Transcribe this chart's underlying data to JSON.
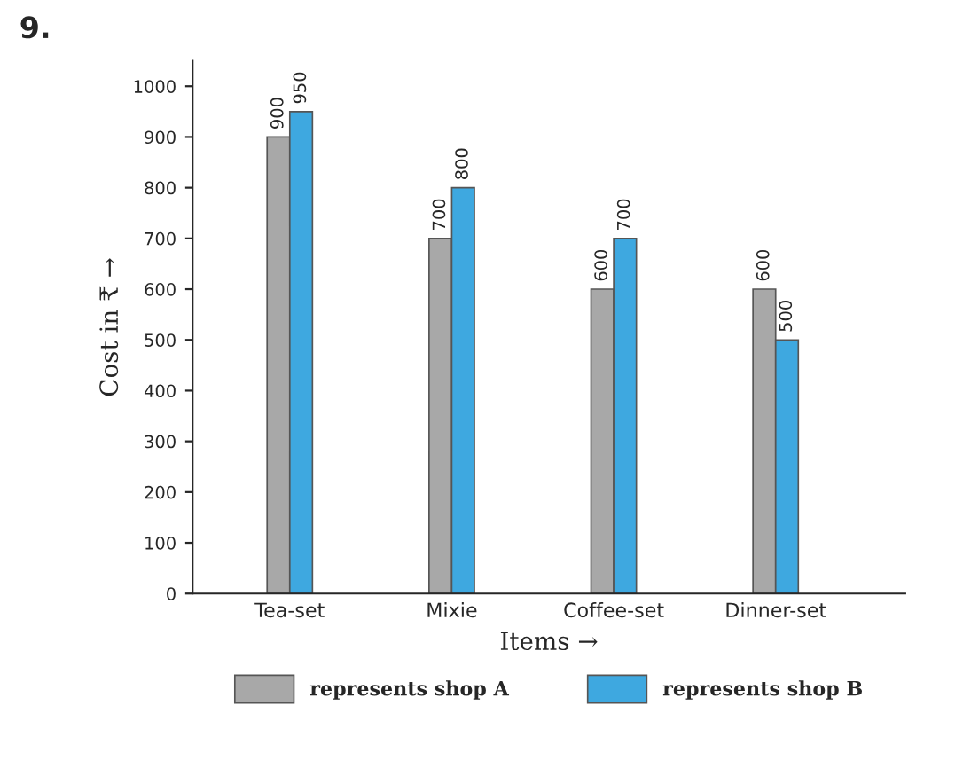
{
  "chart_data": {
    "type": "bar",
    "xlabel": "Items →",
    "ylabel": "Cost in ₹ →",
    "annotations": [
      "9."
    ],
    "categories": [
      "Tea-set",
      "Mixie",
      "Coffee-set",
      "Dinner-set"
    ],
    "series": [
      {
        "name": "represents shop A",
        "color": "#a8a8a8",
        "values": [
          900,
          700,
          600,
          600
        ]
      },
      {
        "name": "represents shop B",
        "color": "#3ea8e0",
        "values": [
          950,
          800,
          700,
          500
        ]
      }
    ],
    "ylim": [
      0,
      1050
    ],
    "yticks": [
      0,
      100,
      200,
      300,
      400,
      500,
      600,
      700,
      800,
      900,
      1000
    ],
    "data_labels": true,
    "grid": false,
    "legend": "bottom"
  }
}
